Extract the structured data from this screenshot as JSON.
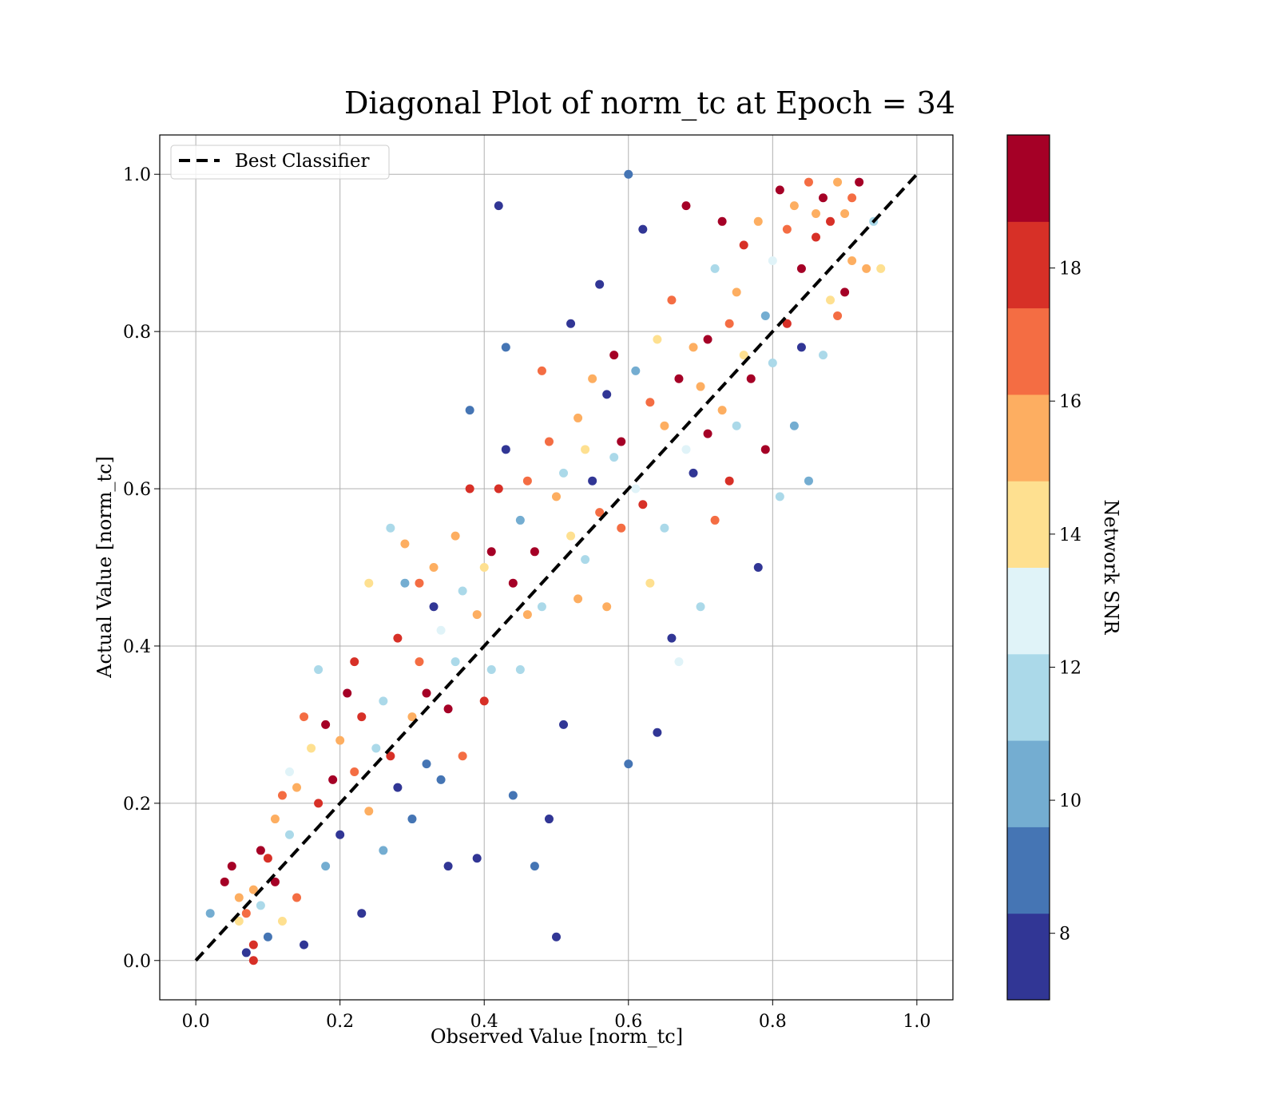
{
  "chart_data": {
    "type": "scatter",
    "title": "Diagonal Plot of norm_tc at Epoch = 34",
    "xlabel": "Observed Value [norm_tc]",
    "ylabel": "Actual Value [norm_tc]",
    "xlim": [
      -0.05,
      1.05
    ],
    "ylim": [
      -0.05,
      1.05
    ],
    "x_ticks": [
      "0.0",
      "0.2",
      "0.4",
      "0.6",
      "0.8",
      "1.0"
    ],
    "y_ticks": [
      "0.0",
      "0.2",
      "0.4",
      "0.6",
      "0.8",
      "1.0"
    ],
    "grid": true,
    "legend": {
      "position": "top-left",
      "entries": [
        "Best Classifier"
      ]
    },
    "reference_line": {
      "name": "Best Classifier",
      "style": "dashed",
      "color": "#000000",
      "from": [
        0,
        0
      ],
      "to": [
        1,
        1
      ]
    },
    "colorbar": {
      "label": "Network SNR",
      "range": [
        7,
        20
      ],
      "ticks": [
        "8",
        "10",
        "12",
        "14",
        "16",
        "18"
      ],
      "colors": [
        "#313695",
        "#4575b4",
        "#74add1",
        "#abd9e9",
        "#e0f3f8",
        "#fee090",
        "#fdae61",
        "#f46d43",
        "#d73027",
        "#a50026"
      ]
    },
    "points": [
      [
        0.02,
        0.06,
        10
      ],
      [
        0.04,
        0.1,
        19
      ],
      [
        0.05,
        0.12,
        19
      ],
      [
        0.06,
        0.08,
        16
      ],
      [
        0.06,
        0.05,
        14
      ],
      [
        0.07,
        0.01,
        8
      ],
      [
        0.07,
        0.06,
        17
      ],
      [
        0.08,
        0.02,
        18
      ],
      [
        0.08,
        0.0,
        18
      ],
      [
        0.08,
        0.09,
        15
      ],
      [
        0.09,
        0.14,
        19
      ],
      [
        0.09,
        0.07,
        12
      ],
      [
        0.1,
        0.13,
        18
      ],
      [
        0.1,
        0.03,
        9
      ],
      [
        0.11,
        0.18,
        15
      ],
      [
        0.11,
        0.1,
        19
      ],
      [
        0.12,
        0.21,
        17
      ],
      [
        0.12,
        0.05,
        14
      ],
      [
        0.13,
        0.24,
        13
      ],
      [
        0.13,
        0.16,
        11
      ],
      [
        0.14,
        0.22,
        16
      ],
      [
        0.14,
        0.08,
        17
      ],
      [
        0.15,
        0.31,
        17
      ],
      [
        0.15,
        0.02,
        8
      ],
      [
        0.16,
        0.27,
        14
      ],
      [
        0.17,
        0.2,
        18
      ],
      [
        0.17,
        0.37,
        12
      ],
      [
        0.18,
        0.3,
        19
      ],
      [
        0.18,
        0.12,
        10
      ],
      [
        0.19,
        0.23,
        19
      ],
      [
        0.2,
        0.28,
        15
      ],
      [
        0.2,
        0.16,
        8
      ],
      [
        0.21,
        0.34,
        19
      ],
      [
        0.22,
        0.24,
        17
      ],
      [
        0.22,
        0.38,
        18
      ],
      [
        0.23,
        0.31,
        18
      ],
      [
        0.23,
        0.06,
        8
      ],
      [
        0.24,
        0.19,
        16
      ],
      [
        0.24,
        0.48,
        14
      ],
      [
        0.25,
        0.27,
        11
      ],
      [
        0.26,
        0.33,
        12
      ],
      [
        0.26,
        0.14,
        10
      ],
      [
        0.27,
        0.55,
        11
      ],
      [
        0.27,
        0.26,
        18
      ],
      [
        0.28,
        0.41,
        18
      ],
      [
        0.28,
        0.22,
        8
      ],
      [
        0.29,
        0.48,
        10
      ],
      [
        0.29,
        0.53,
        15
      ],
      [
        0.3,
        0.31,
        16
      ],
      [
        0.3,
        0.18,
        9
      ],
      [
        0.31,
        0.38,
        17
      ],
      [
        0.31,
        0.48,
        17
      ],
      [
        0.32,
        0.34,
        19
      ],
      [
        0.32,
        0.25,
        9
      ],
      [
        0.33,
        0.45,
        8
      ],
      [
        0.33,
        0.5,
        16
      ],
      [
        0.34,
        0.42,
        13
      ],
      [
        0.34,
        0.23,
        9
      ],
      [
        0.35,
        0.32,
        19
      ],
      [
        0.35,
        0.12,
        8
      ],
      [
        0.36,
        0.54,
        15
      ],
      [
        0.36,
        0.38,
        11
      ],
      [
        0.37,
        0.47,
        12
      ],
      [
        0.37,
        0.26,
        17
      ],
      [
        0.38,
        0.6,
        18
      ],
      [
        0.38,
        0.7,
        9
      ],
      [
        0.39,
        0.44,
        15
      ],
      [
        0.39,
        0.13,
        8
      ],
      [
        0.4,
        0.5,
        14
      ],
      [
        0.4,
        0.33,
        18
      ],
      [
        0.41,
        0.52,
        19
      ],
      [
        0.41,
        0.37,
        12
      ],
      [
        0.42,
        0.6,
        18
      ],
      [
        0.42,
        0.96,
        8
      ],
      [
        0.43,
        0.65,
        8
      ],
      [
        0.43,
        0.78,
        9
      ],
      [
        0.44,
        0.48,
        19
      ],
      [
        0.44,
        0.21,
        9
      ],
      [
        0.45,
        0.56,
        10
      ],
      [
        0.45,
        0.37,
        11
      ],
      [
        0.46,
        0.61,
        17
      ],
      [
        0.46,
        0.44,
        16
      ],
      [
        0.47,
        0.52,
        19
      ],
      [
        0.47,
        0.12,
        9
      ],
      [
        0.48,
        0.75,
        17
      ],
      [
        0.48,
        0.45,
        12
      ],
      [
        0.49,
        0.66,
        17
      ],
      [
        0.49,
        0.18,
        8
      ],
      [
        0.5,
        0.59,
        16
      ],
      [
        0.5,
        0.03,
        8
      ],
      [
        0.51,
        0.62,
        11
      ],
      [
        0.51,
        0.3,
        8
      ],
      [
        0.52,
        0.81,
        8
      ],
      [
        0.52,
        0.54,
        14
      ],
      [
        0.53,
        0.69,
        15
      ],
      [
        0.53,
        0.46,
        16
      ],
      [
        0.54,
        0.65,
        14
      ],
      [
        0.54,
        0.51,
        11
      ],
      [
        0.55,
        0.74,
        16
      ],
      [
        0.55,
        0.61,
        8
      ],
      [
        0.56,
        0.86,
        8
      ],
      [
        0.56,
        0.57,
        17
      ],
      [
        0.57,
        0.72,
        8
      ],
      [
        0.57,
        0.45,
        15
      ],
      [
        0.58,
        0.77,
        19
      ],
      [
        0.58,
        0.64,
        12
      ],
      [
        0.59,
        0.66,
        19
      ],
      [
        0.59,
        0.55,
        17
      ],
      [
        0.6,
        1.0,
        9
      ],
      [
        0.6,
        0.25,
        9
      ],
      [
        0.61,
        0.75,
        10
      ],
      [
        0.61,
        0.6,
        13
      ],
      [
        0.62,
        0.93,
        8
      ],
      [
        0.62,
        0.58,
        18
      ],
      [
        0.63,
        0.71,
        17
      ],
      [
        0.63,
        0.48,
        14
      ],
      [
        0.64,
        0.79,
        14
      ],
      [
        0.64,
        0.29,
        8
      ],
      [
        0.65,
        0.68,
        16
      ],
      [
        0.65,
        0.55,
        12
      ],
      [
        0.66,
        0.84,
        17
      ],
      [
        0.66,
        0.41,
        8
      ],
      [
        0.67,
        0.74,
        19
      ],
      [
        0.67,
        0.38,
        13
      ],
      [
        0.68,
        0.96,
        19
      ],
      [
        0.68,
        0.65,
        13
      ],
      [
        0.69,
        0.78,
        15
      ],
      [
        0.69,
        0.62,
        8
      ],
      [
        0.7,
        0.73,
        16
      ],
      [
        0.7,
        0.45,
        11
      ],
      [
        0.71,
        0.79,
        19
      ],
      [
        0.71,
        0.67,
        19
      ],
      [
        0.72,
        0.88,
        11
      ],
      [
        0.72,
        0.56,
        17
      ],
      [
        0.73,
        0.94,
        19
      ],
      [
        0.73,
        0.7,
        16
      ],
      [
        0.74,
        0.81,
        17
      ],
      [
        0.74,
        0.61,
        18
      ],
      [
        0.75,
        0.85,
        15
      ],
      [
        0.75,
        0.68,
        11
      ],
      [
        0.76,
        0.91,
        18
      ],
      [
        0.76,
        0.77,
        14
      ],
      [
        0.77,
        0.74,
        19
      ],
      [
        0.78,
        0.94,
        15
      ],
      [
        0.78,
        0.5,
        8
      ],
      [
        0.79,
        0.82,
        10
      ],
      [
        0.79,
        0.65,
        19
      ],
      [
        0.8,
        0.89,
        13
      ],
      [
        0.8,
        0.76,
        12
      ],
      [
        0.81,
        0.98,
        19
      ],
      [
        0.81,
        0.59,
        11
      ],
      [
        0.82,
        0.93,
        17
      ],
      [
        0.82,
        0.81,
        18
      ],
      [
        0.83,
        0.96,
        15
      ],
      [
        0.83,
        0.68,
        10
      ],
      [
        0.84,
        0.88,
        19
      ],
      [
        0.84,
        0.78,
        8
      ],
      [
        0.85,
        0.99,
        17
      ],
      [
        0.85,
        0.61,
        10
      ],
      [
        0.86,
        0.95,
        16
      ],
      [
        0.86,
        0.92,
        18
      ],
      [
        0.87,
        0.97,
        19
      ],
      [
        0.87,
        0.77,
        11
      ],
      [
        0.88,
        0.84,
        14
      ],
      [
        0.88,
        0.94,
        18
      ],
      [
        0.89,
        0.99,
        16
      ],
      [
        0.89,
        0.82,
        17
      ],
      [
        0.9,
        0.95,
        15
      ],
      [
        0.9,
        0.85,
        19
      ],
      [
        0.91,
        0.97,
        17
      ],
      [
        0.91,
        0.89,
        15
      ],
      [
        0.92,
        0.99,
        19
      ],
      [
        0.93,
        0.88,
        16
      ],
      [
        0.94,
        0.94,
        11
      ],
      [
        0.95,
        0.88,
        14
      ]
    ]
  }
}
